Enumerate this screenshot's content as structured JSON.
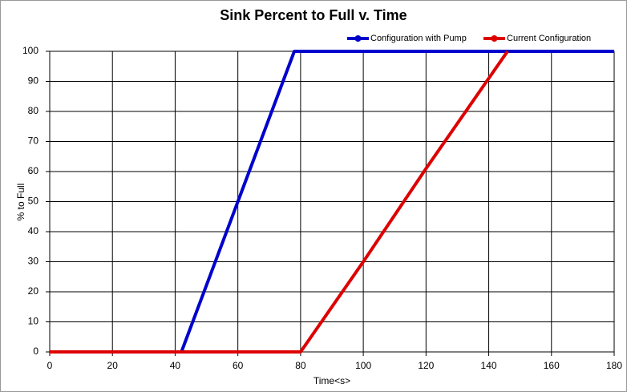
{
  "chart_data": {
    "type": "line",
    "title": "Sink Percent to Full v. Time",
    "x_label": "Time<s>",
    "y_label": "% to Full",
    "xlim": [
      0,
      180
    ],
    "xticks": [
      0,
      20,
      40,
      60,
      80,
      100,
      120,
      140,
      160,
      180
    ],
    "ylim": [
      0,
      100
    ],
    "yticks": [
      0,
      10,
      20,
      30,
      40,
      50,
      60,
      70,
      80,
      90,
      100
    ],
    "grid": true,
    "legend": "top-right",
    "series": [
      {
        "name": "Configuration with Pump",
        "color": "#0000cc",
        "x": [
          0,
          42,
          60,
          78,
          180
        ],
        "values": [
          0,
          0,
          50,
          100,
          100
        ]
      },
      {
        "name": "Current Configuration",
        "color": "#dd0000",
        "x": [
          0,
          80,
          100,
          120,
          140,
          146
        ],
        "values": [
          0,
          0,
          30,
          61,
          91,
          100
        ]
      }
    ]
  }
}
